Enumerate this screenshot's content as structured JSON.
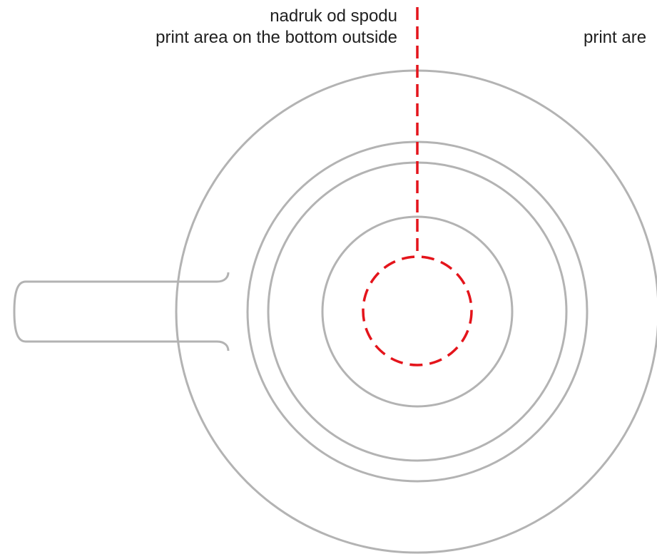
{
  "labels": {
    "bottom_print_pl": "nadruk od spodu",
    "bottom_print_en": "print area on the bottom outside",
    "right_partial_en": "print are"
  },
  "colors": {
    "outline": "#b3b3b3",
    "print_marker": "#e4141b",
    "text": "#1f1f1f"
  },
  "icons": {
    "mug": "mug-top-view-icon",
    "print_area": "print-area-circle-icon"
  }
}
